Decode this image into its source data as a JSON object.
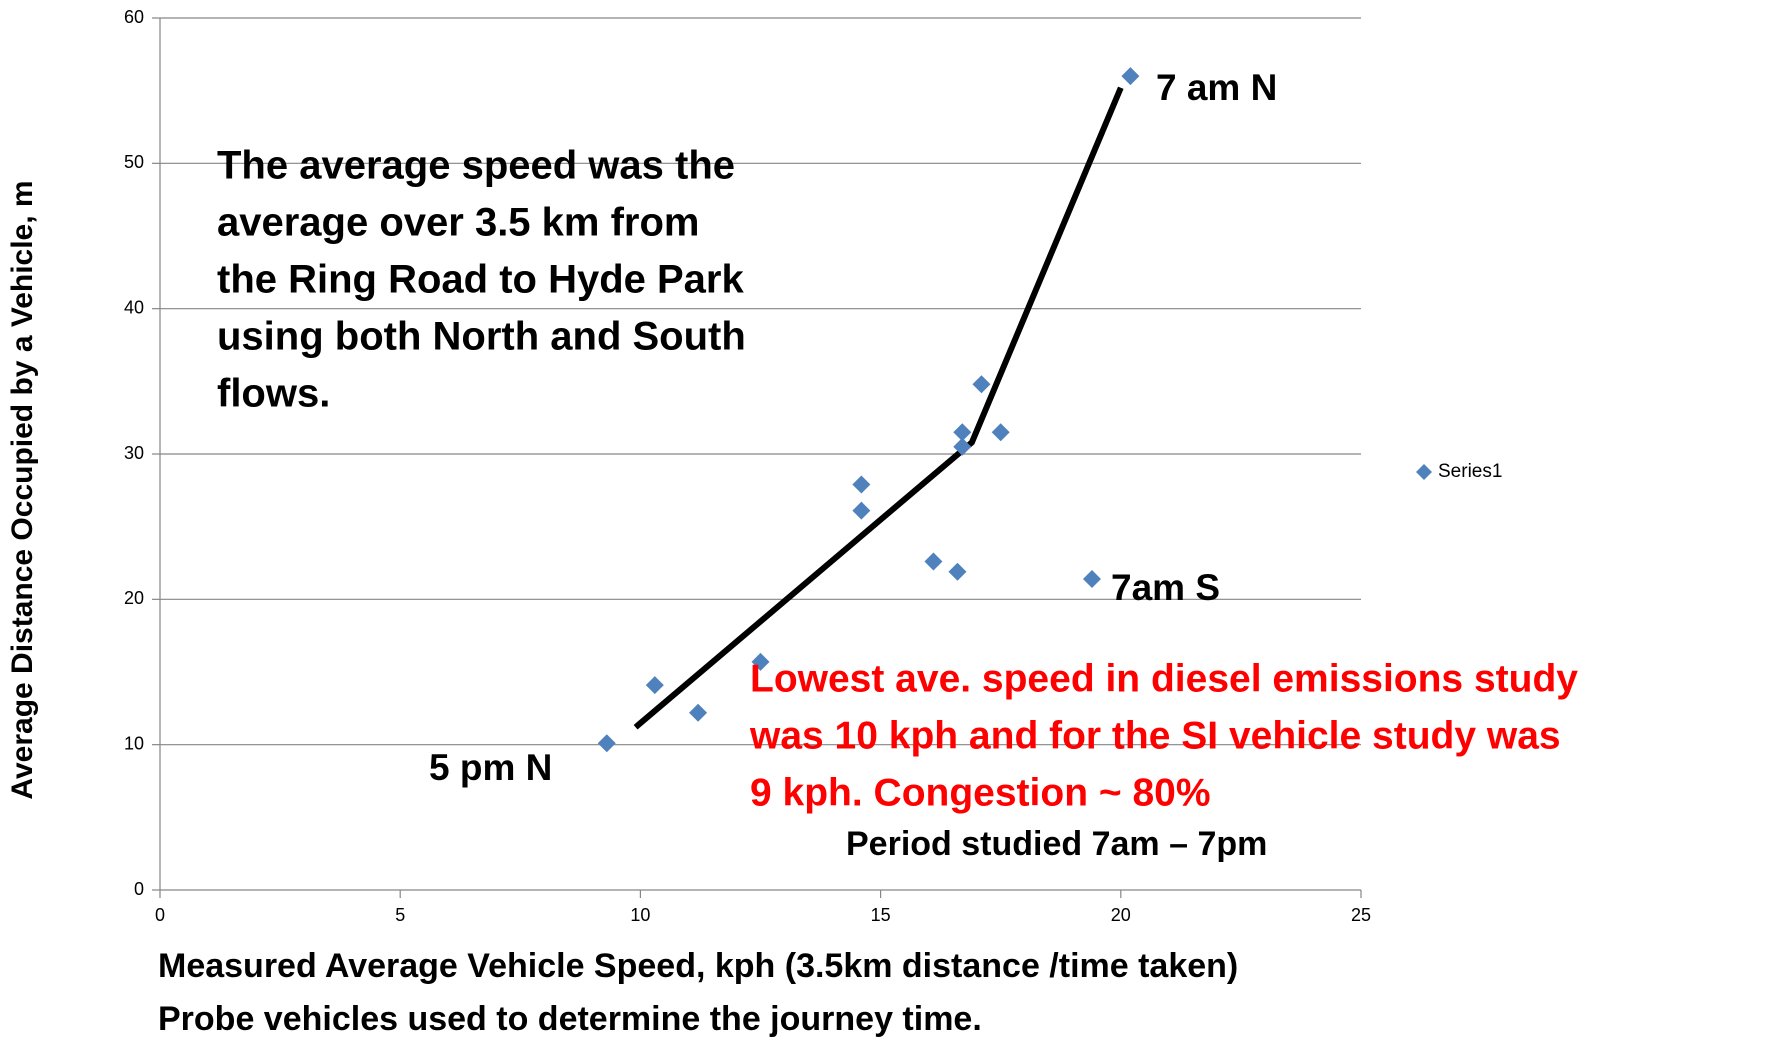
{
  "chart_data": {
    "type": "scatter",
    "xlabel": "Measured Average Vehicle Speed, kph  (3.5km distance /time taken)",
    "xlabel_note": "Probe vehicles used to determine the journey  time.",
    "ylabel": "Average Distance  Occupied by a Vehicle, m",
    "xlim": [
      0,
      25
    ],
    "xticks": [
      0,
      5,
      10,
      15,
      20,
      25
    ],
    "ylim": [
      0,
      60
    ],
    "yticks": [
      0,
      10,
      20,
      30,
      40,
      50,
      60
    ],
    "grid": true,
    "legend": "right",
    "series": [
      {
        "name": "Series1",
        "color": "#4f81bd",
        "x": [
          9.3,
          10.3,
          11.2,
          12.5,
          14.6,
          14.6,
          16.1,
          16.6,
          16.7,
          16.7,
          17.1,
          17.5,
          19.4,
          20.2
        ],
        "values": [
          10.1,
          14.1,
          12.2,
          15.7,
          27.9,
          26.1,
          22.6,
          21.9,
          31.5,
          30.5,
          34.8,
          31.5,
          21.4,
          56
        ]
      }
    ],
    "trend_line": {
      "color": "#000000",
      "x": [
        9.9,
        16.9,
        20
      ],
      "values": [
        11.2,
        30.8,
        55.2
      ]
    },
    "annotations": [
      {
        "lines": [
          "7 am N"
        ],
        "color": "#000000"
      },
      {
        "lines": [
          "The average speed was the",
          "average over 3.5 km from",
          "the Ring Road to Hyde Park",
          "using both North and South",
          "flows."
        ],
        "color": "#000000"
      },
      {
        "lines": [
          "7am S"
        ],
        "color": "#000000"
      },
      {
        "lines": [
          "5 pm N"
        ],
        "color": "#000000"
      },
      {
        "lines": [
          "Lowest ave. speed in diesel emissions study",
          "was 10 kph and for the SI vehicle study was",
          "9 kph. Congestion ~ 80%"
        ],
        "color": "#ff0000"
      },
      {
        "lines": [
          "Period studied 7am – 7pm"
        ],
        "color": "#000000"
      }
    ]
  }
}
